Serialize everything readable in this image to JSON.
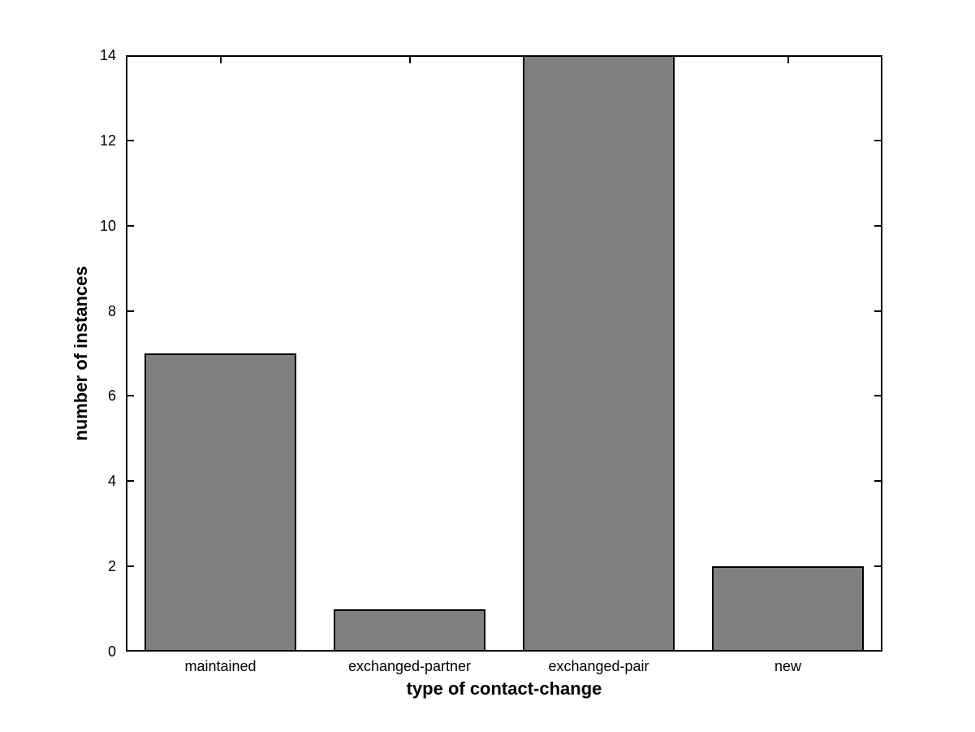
{
  "chart_data": {
    "type": "bar",
    "categories": [
      "maintained",
      "exchanged-partner",
      "exchanged-pair",
      "new"
    ],
    "values": [
      7,
      1,
      14,
      2
    ],
    "title": "",
    "xlabel": "type of contact-change",
    "ylabel": "number of instances",
    "ylim": [
      0,
      14
    ],
    "yticks": [
      0,
      2,
      4,
      6,
      8,
      10,
      12,
      14
    ],
    "bar_width_fraction": 0.8,
    "grid": false,
    "legend_position": "none",
    "colors": {
      "bar_fill": "#808080",
      "bar_edge": "#000000",
      "axis": "#000000",
      "text": "#000000",
      "background": "#ffffff"
    }
  }
}
